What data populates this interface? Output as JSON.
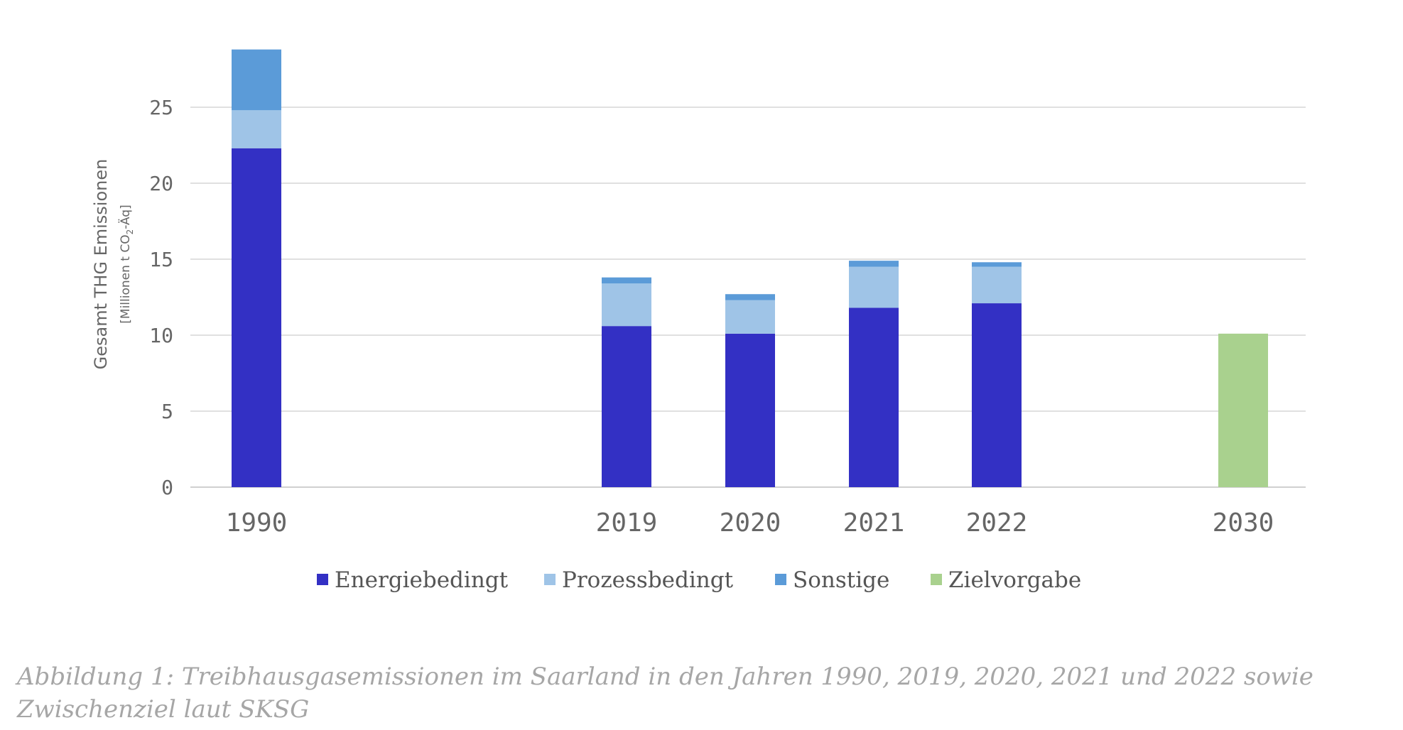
{
  "chart_data": {
    "type": "bar",
    "stacked": true,
    "categories": [
      "1990",
      "2019",
      "2020",
      "2021",
      "2022",
      "2030"
    ],
    "series": [
      {
        "name": "Energiebedingt",
        "color": "#3330c4",
        "values": [
          22.3,
          10.6,
          10.1,
          11.8,
          12.1,
          0
        ]
      },
      {
        "name": "Prozessbedingt",
        "color": "#9fc4e7",
        "values": [
          2.5,
          2.8,
          2.2,
          2.7,
          2.4,
          0
        ]
      },
      {
        "name": "Sonstige",
        "color": "#5b9bd8",
        "values": [
          4.0,
          0.4,
          0.4,
          0.4,
          0.3,
          0
        ]
      },
      {
        "name": "Zielvorgabe",
        "color": "#a9d18e",
        "values": [
          0,
          0,
          0,
          0,
          0,
          10.1
        ]
      }
    ],
    "ylabel": "Gesamt THG Emissionen",
    "ylabel_unit": "[Millionen t CO2-Äq]",
    "ylabel_unit_parts": [
      "[Millionen t CO",
      "2",
      "-Äq]"
    ],
    "ylim": [
      0,
      29
    ],
    "yticks": [
      0,
      5,
      10,
      15,
      20,
      25
    ],
    "grid": true,
    "legend_position": "bottom",
    "caption": "Abbildung 1: Treibhausgasemissionen im Saarland in den Jahren 1990, 2019, 2020, 2021 und 2022 sowie Zwischenziel laut SKSG"
  }
}
